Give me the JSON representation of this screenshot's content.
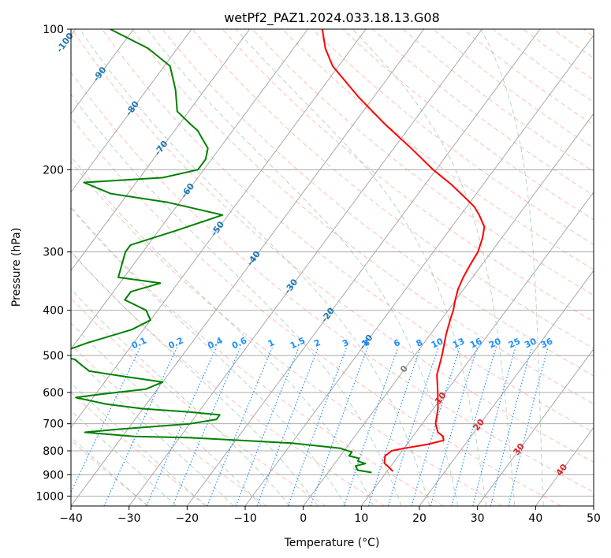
{
  "chart_data": {
    "type": "line",
    "title": "wetPf2_PAZ1.2024.033.18.13.G08",
    "xlabel": "Temperature (°C)",
    "ylabel": "Pressure (hPa)",
    "xlim": [
      -40,
      50
    ],
    "ylim": [
      1050,
      100
    ],
    "y_scale": "log",
    "grid": true,
    "x_ticks": [
      "−40",
      "−30",
      "−20",
      "−10",
      "0",
      "10",
      "20",
      "30",
      "40",
      "50"
    ],
    "y_ticks": [
      "100",
      "200",
      "300",
      "400",
      "500",
      "600",
      "700",
      "800",
      "900",
      "1000"
    ],
    "isotherm_labels": [
      "-100",
      "-90",
      "-80",
      "-70",
      "-60",
      "-50",
      "-40",
      "-30",
      "-20",
      "-10",
      "0",
      "10",
      "20",
      "30",
      "40"
    ],
    "mixing_ratio_labels": [
      "0.1",
      "0.2",
      "0.4",
      "0.6",
      "1",
      "1.5",
      "2",
      "3",
      "4",
      "6",
      "8",
      "10",
      "13",
      "16",
      "20",
      "25",
      "30",
      "36"
    ],
    "series": [
      {
        "name": "Temperature",
        "color": "#ff0000",
        "p": [
          885,
          870,
          850,
          820,
          800,
          790,
          775,
          760,
          745,
          730,
          700,
          650,
          600,
          550,
          500,
          450,
          420,
          400,
          380,
          360,
          340,
          320,
          300,
          280,
          265,
          250,
          240,
          230,
          215,
          200,
          180,
          160,
          140,
          120,
          110,
          100
        ],
        "t": [
          11.0,
          10.0,
          8.5,
          7.7,
          8.2,
          10.0,
          13.5,
          15.8,
          15.2,
          13.8,
          12.3,
          10.8,
          8.7,
          6.3,
          4.7,
          2.7,
          1.6,
          0.9,
          -0.1,
          -1.0,
          -1.6,
          -2.0,
          -2.3,
          -3.3,
          -4.4,
          -6.8,
          -8.7,
          -11.3,
          -15.5,
          -20.5,
          -27.0,
          -34.5,
          -42.5,
          -51.0,
          -54.5,
          -57.5
        ]
      },
      {
        "name": "Dewpoint",
        "color": "#008000",
        "p": [
          890,
          880,
          862,
          852,
          842,
          830,
          820,
          805,
          790,
          770,
          750,
          745,
          730,
          720,
          700,
          685,
          670,
          660,
          650,
          635,
          615,
          605,
          590,
          570,
          555,
          540,
          525,
          510,
          497,
          470,
          440,
          420,
          400,
          380,
          365,
          350,
          340,
          300,
          290,
          270,
          250,
          235,
          225,
          213,
          208,
          200,
          190,
          180,
          165,
          160,
          150,
          135,
          120,
          110,
          100
        ],
        "t": [
          7.5,
          4.8,
          3.9,
          5.3,
          3.7,
          3.5,
          1.5,
          1.5,
          -1.0,
          -10.0,
          -28.0,
          -38.0,
          -47.0,
          -42.0,
          -30.0,
          -26.0,
          -26.0,
          -32.0,
          -40.0,
          -47.0,
          -53.0,
          -49.0,
          -42.0,
          -40.0,
          -47.0,
          -54.0,
          -56.0,
          -58.0,
          -62.0,
          -58.0,
          -52.0,
          -50.0,
          -52.0,
          -57.0,
          -57.0,
          -53.0,
          -61.0,
          -63.0,
          -63.0,
          -57.0,
          -51.0,
          -62.0,
          -73.0,
          -79.0,
          -66.0,
          -61.0,
          -61.0,
          -62.0,
          -66.0,
          -68.0,
          -72.0,
          -75.0,
          -79.0,
          -85.0,
          -94.0
        ]
      }
    ]
  }
}
